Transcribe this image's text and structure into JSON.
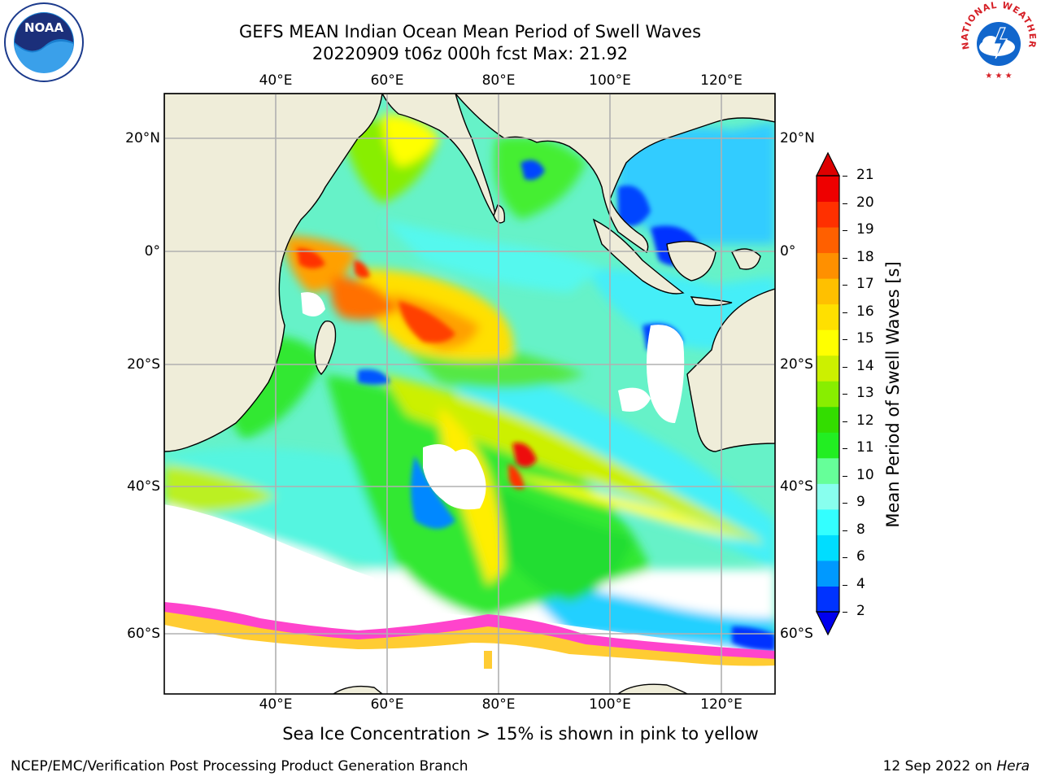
{
  "title_line1": "GEFS MEAN Indian Ocean Mean Period of Swell Waves",
  "title_line2": "20220909 t06z 000h fcst   Max: 21.92",
  "lon_labels": [
    "40°E",
    "60°E",
    "80°E",
    "100°E",
    "120°E"
  ],
  "lat_labels": [
    "20°N",
    "0°",
    "20°S",
    "40°S",
    "60°S"
  ],
  "colorbar": {
    "label": "Mean Period of Swell Waves [s]",
    "ticks": [
      "2",
      "4",
      "6",
      "8",
      "9",
      "10",
      "11",
      "12",
      "13",
      "14",
      "15",
      "16",
      "17",
      "18",
      "19",
      "20",
      "21"
    ],
    "colors": [
      "#0033ff",
      "#0099ff",
      "#00ddff",
      "#33ffff",
      "#88ffee",
      "#66ff99",
      "#22ee22",
      "#33dd00",
      "#88ee00",
      "#ccf000",
      "#ffff00",
      "#ffe000",
      "#ffc000",
      "#ff9000",
      "#ff6000",
      "#ff3000",
      "#ee0000"
    ],
    "under_color": "#0000ee",
    "over_color": "#dd0000"
  },
  "caption": "Sea Ice Concentration > 15% is shown in pink to yellow",
  "footer_left": "NCEP/EMC/Verification Post Processing Product Generation Branch",
  "footer_date": "12 Sep 2022 on ",
  "footer_host": "Hera",
  "logos": {
    "left": "NOAA",
    "right_text": "NATIONAL WEATHER SERVICE"
  },
  "colors": {
    "land": "#efedd9",
    "grid": "#b0b0b0"
  }
}
